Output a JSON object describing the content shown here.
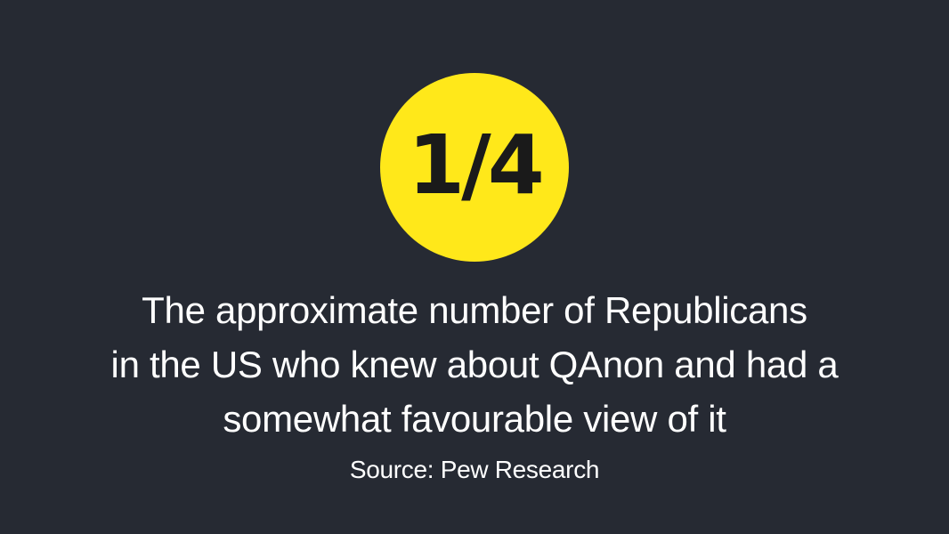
{
  "stat": {
    "value": "1/4"
  },
  "description": {
    "lines": [
      "The approximate number of Republicans",
      "in the US who knew about QAnon and had a",
      "somewhat favourable view of it"
    ]
  },
  "source": "Source: Pew Research",
  "colors": {
    "background": "#262a33",
    "accent": "#ffe81a",
    "text": "#ffffff"
  }
}
